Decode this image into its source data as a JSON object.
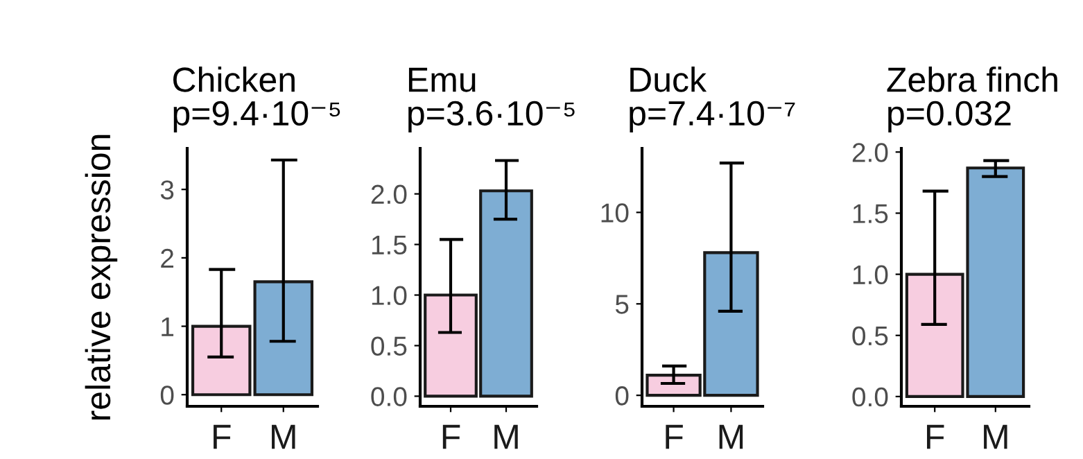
{
  "chart_data": [
    {
      "type": "bar",
      "title": "Chicken\np=9.4·10⁻⁵",
      "ylabel": "relative expression",
      "categories": [
        "F",
        "M"
      ],
      "values": [
        1.0,
        1.65
      ],
      "colors": [
        "#f7cde0",
        "#7eadd3"
      ],
      "errors": [
        [
          0.55,
          1.83
        ],
        [
          0.78,
          3.43
        ]
      ],
      "ylim": [
        -0.17,
        3.6
      ],
      "yticks": [
        0,
        1,
        2,
        3
      ],
      "grid": false,
      "legend": false
    },
    {
      "type": "bar",
      "title": "Emu\np=3.6·10⁻⁵",
      "categories": [
        "F",
        "M"
      ],
      "values": [
        1.0,
        2.03
      ],
      "colors": [
        "#f7cde0",
        "#7eadd3"
      ],
      "errors": [
        [
          0.63,
          1.55
        ],
        [
          1.75,
          2.33
        ]
      ],
      "ylim": [
        -0.1,
        2.45
      ],
      "yticks": [
        {
          "value": 0,
          "label": "0.0"
        },
        {
          "value": 0.5,
          "label": "0.5"
        },
        {
          "value": 1,
          "label": "1.0"
        },
        {
          "value": 1.5,
          "label": "1.5"
        },
        {
          "value": 2,
          "label": "2.0"
        }
      ],
      "grid": false,
      "legend": false
    },
    {
      "type": "bar",
      "title": "Duck\np=7.4·10⁻⁷",
      "categories": [
        "F",
        "M"
      ],
      "values": [
        1.1,
        7.8
      ],
      "colors": [
        "#f7cde0",
        "#7eadd3"
      ],
      "errors": [
        [
          0.65,
          1.6
        ],
        [
          4.6,
          12.7
        ]
      ],
      "ylim": [
        -0.6,
        13.5
      ],
      "yticks": [
        0,
        5,
        10
      ],
      "grid": false,
      "legend": false
    },
    {
      "type": "bar",
      "title": "Zebra finch\np=0.032",
      "categories": [
        "F",
        "M"
      ],
      "values": [
        1.0,
        1.87
      ],
      "colors": [
        "#f7cde0",
        "#7eadd3"
      ],
      "errors": [
        [
          0.59,
          1.68
        ],
        [
          1.8,
          1.93
        ]
      ],
      "ylim": [
        -0.08,
        2.03
      ],
      "yticks": [
        {
          "value": 0,
          "label": "0.0"
        },
        {
          "value": 0.5,
          "label": "0.5"
        },
        {
          "value": 1,
          "label": "1.0"
        },
        {
          "value": 1.5,
          "label": "1.5"
        },
        {
          "value": 2,
          "label": "2.0"
        }
      ],
      "grid": false,
      "legend": false
    }
  ]
}
